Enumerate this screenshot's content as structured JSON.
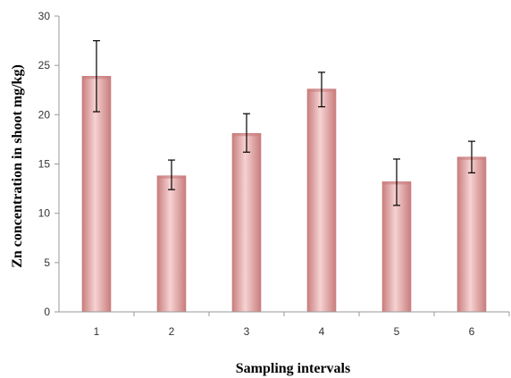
{
  "chart_data": {
    "type": "bar",
    "title": "",
    "xlabel": "Sampling intervals",
    "ylabel": "Zn concentration in shoot mg/kg)",
    "categories": [
      "1",
      "2",
      "3",
      "4",
      "5",
      "6"
    ],
    "values": [
      23.9,
      13.8,
      18.1,
      22.6,
      13.2,
      15.7
    ],
    "error_low": [
      20.3,
      12.4,
      16.2,
      20.8,
      10.8,
      14.1
    ],
    "error_high": [
      27.5,
      15.4,
      20.1,
      24.3,
      15.5,
      17.3
    ],
    "ylim": [
      0,
      30
    ],
    "yticks": [
      0,
      5,
      10,
      15,
      20,
      25,
      30
    ],
    "grid": false,
    "legend": "none",
    "colors": {
      "bar": "#e9a3a3",
      "bar_light": "#f6d2d2",
      "bar_dark": "#c97d7d",
      "axis": "#999999",
      "error": "#000000"
    }
  }
}
